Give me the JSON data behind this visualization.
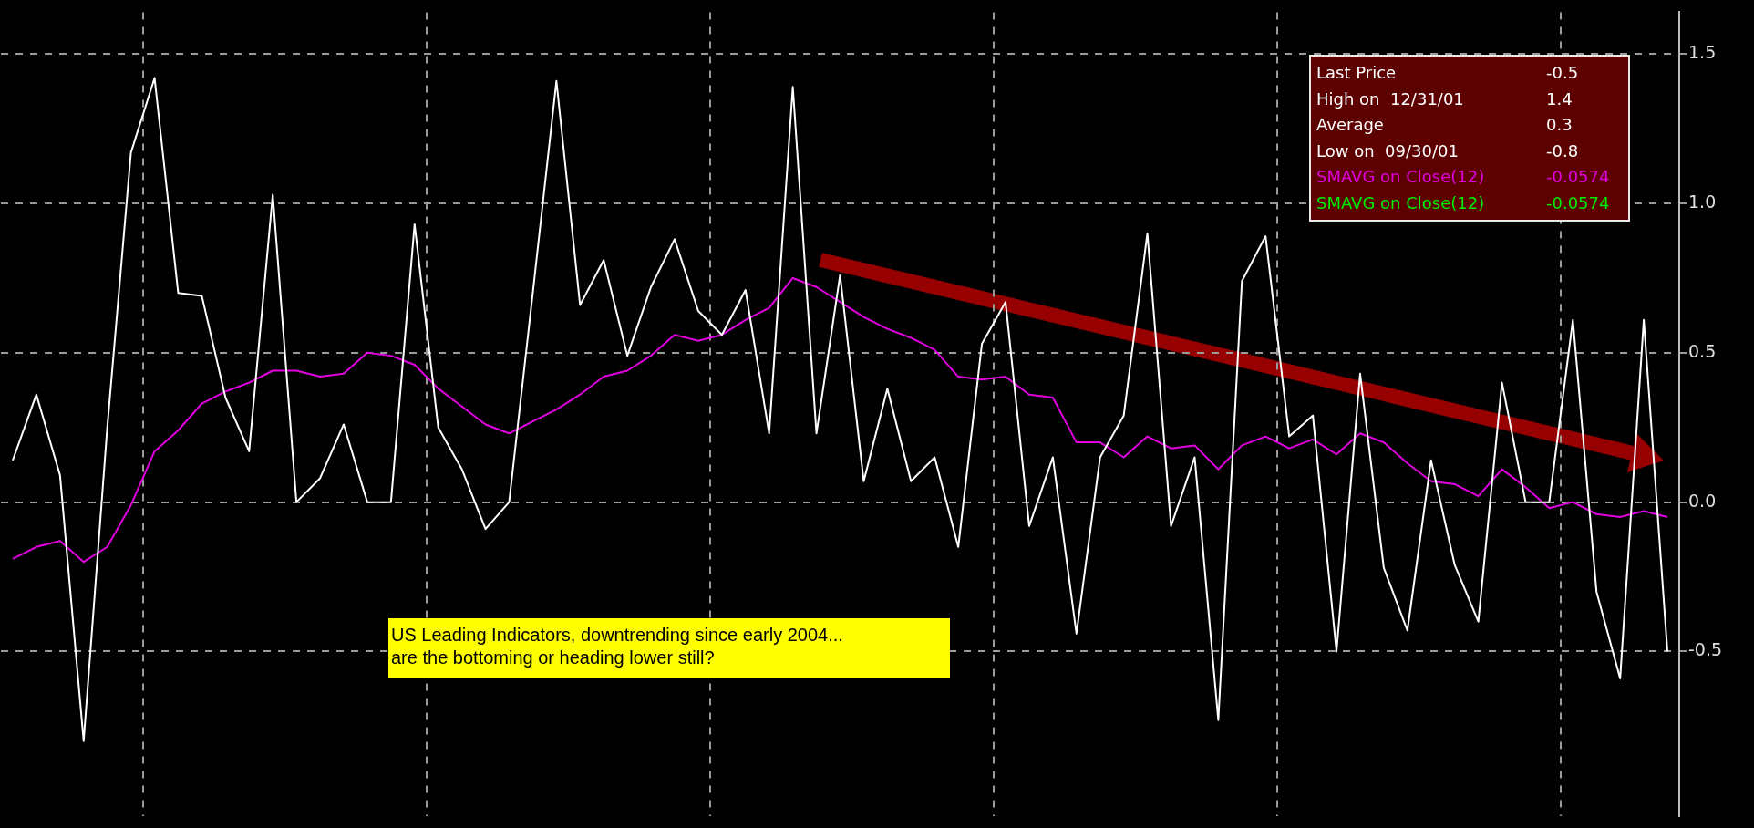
{
  "chart_data": {
    "type": "line",
    "categories": [
      null,
      null,
      null,
      null,
      null,
      null,
      null,
      null,
      null,
      null,
      null,
      null,
      null,
      null,
      null,
      null,
      null,
      null,
      null,
      null,
      null,
      null,
      null,
      null,
      null,
      null,
      null,
      null,
      null,
      null,
      null,
      null,
      null,
      null,
      null,
      null,
      null,
      null,
      null,
      null,
      null,
      null,
      null,
      null,
      null,
      null,
      null,
      null,
      null,
      null,
      null,
      null,
      null,
      null,
      null,
      null,
      null,
      null,
      null,
      null,
      null,
      null,
      null,
      null,
      null,
      null,
      null,
      null,
      null,
      null,
      null
    ],
    "series": [
      {
        "color": "#ffffff",
        "values": [
          0.14,
          0.36,
          0.09,
          -0.8,
          0.25,
          1.17,
          1.42,
          0.7,
          0.69,
          0.35,
          0.17,
          1.03,
          0.0,
          0.08,
          0.26,
          0.0,
          0.0,
          0.93,
          0.25,
          0.11,
          -0.09,
          0.0,
          0.7,
          1.41,
          0.66,
          0.81,
          0.49,
          0.72,
          0.88,
          0.64,
          0.56,
          0.71,
          0.23,
          1.39,
          0.23,
          0.76,
          0.07,
          0.38,
          0.07,
          0.15,
          -0.15,
          0.53,
          0.67,
          -0.08,
          0.15,
          -0.44,
          0.15,
          0.29,
          0.9,
          -0.08,
          0.15,
          -0.73,
          0.74,
          0.89,
          0.22,
          0.29,
          -0.5,
          0.43,
          -0.22,
          -0.43,
          0.14,
          -0.21,
          -0.4,
          0.4,
          0.0,
          0.0,
          0.61,
          -0.3,
          -0.59,
          0.61,
          -0.5
        ]
      },
      {
        "color": "#e000e0",
        "values": [
          -0.19,
          -0.15,
          -0.13,
          -0.2,
          -0.15,
          -0.01,
          0.17,
          0.24,
          0.33,
          0.37,
          0.4,
          0.44,
          0.44,
          0.42,
          0.43,
          0.5,
          0.49,
          0.46,
          0.38,
          0.32,
          0.26,
          0.23,
          0.27,
          0.31,
          0.36,
          0.42,
          0.44,
          0.49,
          0.56,
          0.54,
          0.56,
          0.61,
          0.65,
          0.75,
          0.72,
          0.67,
          0.62,
          0.58,
          0.55,
          0.51,
          0.42,
          0.41,
          0.42,
          0.36,
          0.35,
          0.2,
          0.2,
          0.15,
          0.22,
          0.18,
          0.19,
          0.11,
          0.19,
          0.22,
          0.18,
          0.21,
          0.16,
          0.23,
          0.2,
          0.13,
          0.07,
          0.06,
          0.02,
          0.11,
          0.05,
          -0.02,
          0.0,
          -0.04,
          -0.05,
          -0.03,
          -0.05
        ]
      }
    ],
    "ylim": [
      -1.05,
      1.64
    ],
    "yticks": [
      -0.5,
      {
        "value": 0,
        "label": "0.0"
      },
      {
        "value": 0.5,
        "label": "0.5"
      },
      {
        "value": 1,
        "label": "1.0"
      },
      1.5
    ],
    "grid": true,
    "legend": false,
    "marker": "none",
    "line_style": "solid",
    "tick_labels": "y",
    "annotations": [
      "Last Price",
      "-0.5",
      "High on  12/31/01",
      "1.4",
      "Average",
      "0.3",
      "Low on  09/30/01",
      "-0.8",
      "SMAVG on Close(12)",
      "-0.0574",
      "SMAVG on Close(12)",
      "-0.0574",
      "US Leading Indicators, downtrending since early 2004...\nare the bottoming or heading lower still?"
    ]
  }
}
